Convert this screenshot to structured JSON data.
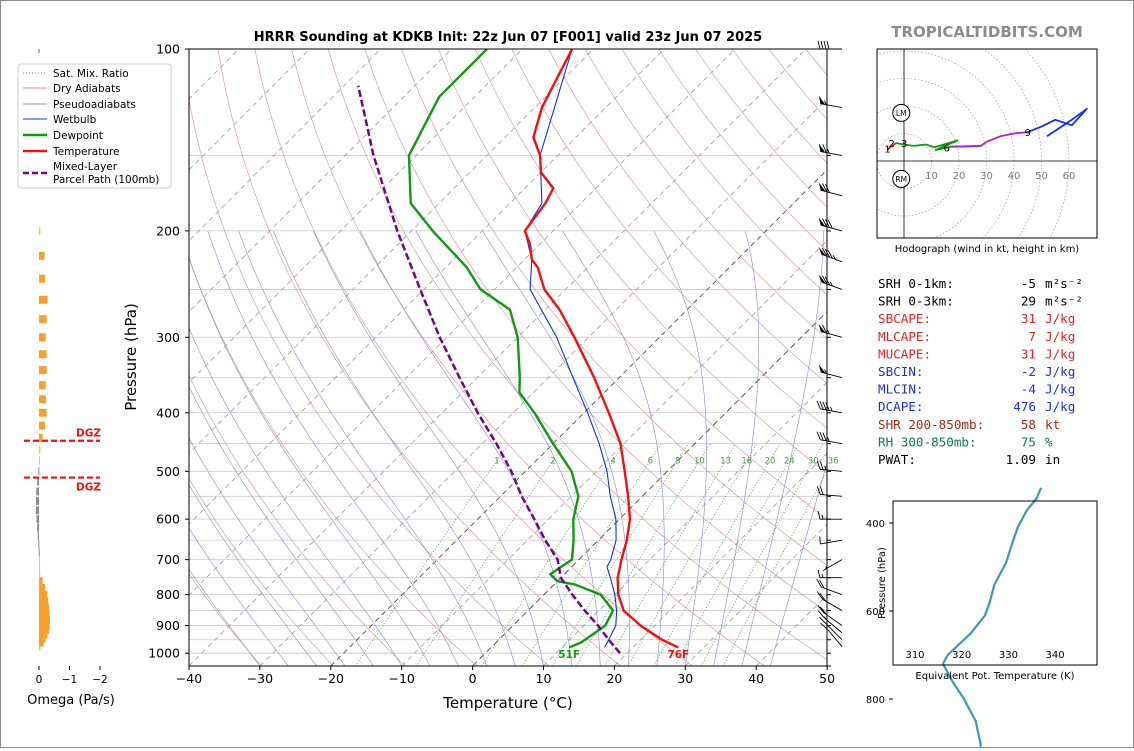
{
  "header": {
    "title": "HRRR Sounding at KDKB Init: 22z Jun 07 [F001] valid 23z Jun 07 2025",
    "brand": "TROPICALTIDBITS.COM"
  },
  "colors": {
    "temperature": "#ee1111",
    "dewpoint": "#119911",
    "wetbulb": "#1133dd",
    "parcel": "#770088",
    "dry_adiabat": "#d98c8c",
    "moist_adiabat": "#8888dd",
    "mixing_ratio": "#449944",
    "isotherm": "#888888",
    "omega": "#f7a12c",
    "dgz": "#ee1111",
    "thetae": "#3a9ab4",
    "hodo_0_1": "#ee1111",
    "hodo_1_3": "#119911",
    "hodo_3_9": "#aa22cc",
    "hodo_9_up": "#1133dd",
    "stat_red": "#d62728",
    "stat_blue": "#2232c8",
    "stat_brown": "#9a2c1c",
    "stat_green": "#117744"
  },
  "chart_data": [
    {
      "type": "line",
      "name": "skewt",
      "xlabel": "Temperature (°C)",
      "ylabel": "Pressure (hPa)",
      "xlim": [
        -40,
        50
      ],
      "ylim": [
        1050,
        100
      ],
      "yscale": "log",
      "skew": "45deg",
      "x_ticks": [
        "−40",
        "−30",
        "−20",
        "−10",
        "0",
        "10",
        "20",
        "30",
        "40",
        "50"
      ],
      "y_ticks": [
        1000,
        900,
        800,
        700,
        600,
        500,
        400,
        300,
        200,
        100
      ],
      "grid": true,
      "legend_position": "left",
      "legend": [
        "Sat. Mix. Ratio",
        "Dry Adiabats",
        "Pseudoadiabats",
        "Wetbulb",
        "Dewpoint",
        "Temperature",
        "Mixed-Layer\nParcel Path (100mb)"
      ],
      "mixing_ratio_labels": [
        "1",
        "2",
        "4",
        "6",
        "8",
        "10",
        "13",
        "16",
        "20",
        "24",
        "30",
        "36"
      ],
      "surface_labels": {
        "dewpoint": "51F",
        "temperature": "76F"
      },
      "series": [
        {
          "name": "Temperature",
          "points": [
            [
              978,
              26.4
            ],
            [
              950,
              23
            ],
            [
              900,
              18
            ],
            [
              850,
              13.5
            ],
            [
              800,
              10.5
            ],
            [
              750,
              8
            ],
            [
              700,
              6
            ],
            [
              650,
              4
            ],
            [
              600,
              1.5
            ],
            [
              550,
              -2
            ],
            [
              500,
              -6
            ],
            [
              450,
              -10.5
            ],
            [
              400,
              -16.5
            ],
            [
              350,
              -23.5
            ],
            [
              300,
              -32
            ],
            [
              270,
              -38
            ],
            [
              250,
              -43
            ],
            [
              230,
              -47
            ],
            [
              223,
              -49
            ],
            [
              210,
              -51.5
            ],
            [
              200,
              -54
            ],
            [
              180,
              -55
            ],
            [
              170,
              -56
            ],
            [
              160,
              -60
            ],
            [
              150,
              -62.5
            ],
            [
              140,
              -66
            ],
            [
              125,
              -69
            ],
            [
              100,
              -73
            ]
          ]
        },
        {
          "name": "Dewpoint",
          "points": [
            [
              978,
              11
            ],
            [
              960,
              12
            ],
            [
              900,
              13
            ],
            [
              850,
              12
            ],
            [
              800,
              8
            ],
            [
              770,
              3
            ],
            [
              760,
              0
            ],
            [
              740,
              -2
            ],
            [
              700,
              -1
            ],
            [
              650,
              -3.5
            ],
            [
              600,
              -6.5
            ],
            [
              550,
              -9
            ],
            [
              500,
              -13.5
            ],
            [
              450,
              -20
            ],
            [
              400,
              -27
            ],
            [
              370,
              -32
            ],
            [
              350,
              -34
            ],
            [
              300,
              -40
            ],
            [
              270,
              -45
            ],
            [
              250,
              -52
            ],
            [
              230,
              -57
            ],
            [
              200,
              -67
            ],
            [
              180,
              -74
            ],
            [
              150,
              -81
            ],
            [
              120,
              -85
            ],
            [
              100,
              -85
            ]
          ]
        },
        {
          "name": "Wetbulb",
          "points": [
            [
              978,
              16
            ],
            [
              950,
              15.5
            ],
            [
              900,
              14.5
            ],
            [
              850,
              12.5
            ],
            [
              800,
              10
            ],
            [
              750,
              7
            ],
            [
              720,
              5
            ],
            [
              700,
              4.5
            ],
            [
              650,
              2.5
            ],
            [
              600,
              -0.5
            ],
            [
              550,
              -4.5
            ],
            [
              500,
              -8.5
            ],
            [
              450,
              -13.5
            ],
            [
              400,
              -19.5
            ],
            [
              350,
              -26.5
            ],
            [
              300,
              -34.5
            ],
            [
              250,
              -45
            ],
            [
              223,
              -49
            ],
            [
              200,
              -54
            ],
            [
              180,
              -55.5
            ],
            [
              150,
              -62.5
            ],
            [
              100,
              -73
            ]
          ]
        },
        {
          "name": "Mixed-Layer\nParcel Path (100mb)",
          "points": [
            [
              1000,
              19
            ],
            [
              950,
              15.5
            ],
            [
              900,
              12
            ],
            [
              850,
              8
            ],
            [
              800,
              4
            ],
            [
              750,
              0
            ],
            [
              700,
              -3
            ],
            [
              650,
              -7.5
            ],
            [
              600,
              -12
            ],
            [
              550,
              -17
            ],
            [
              500,
              -22
            ],
            [
              450,
              -28
            ],
            [
              400,
              -35
            ],
            [
              350,
              -42.5
            ],
            [
              300,
              -51
            ],
            [
              250,
              -60.5
            ],
            [
              200,
              -72
            ],
            [
              150,
              -86
            ],
            [
              115,
              -98
            ]
          ]
        }
      ]
    },
    {
      "type": "bar",
      "name": "omega",
      "xlabel": "Omega (Pa/s)",
      "xlim": [
        0.2,
        -2.2
      ],
      "x_ticks": [
        "0",
        "−1",
        "−2"
      ],
      "dgz_label": "DGZ",
      "dgz_levels": [
        445,
        512
      ],
      "series": [
        {
          "pressure": [
            975,
            960,
            945,
            930,
            915,
            900,
            880,
            860,
            840,
            820,
            800,
            780,
            760,
            740,
            720,
            700,
            680,
            660,
            640,
            620,
            600,
            580,
            560,
            540,
            520,
            500,
            480,
            460,
            440,
            420,
            400,
            380,
            360,
            340,
            320,
            300,
            280,
            260,
            240,
            220,
            200
          ],
          "omega": [
            -0.05,
            -0.15,
            -0.22,
            -0.28,
            -0.33,
            -0.35,
            -0.36,
            -0.35,
            -0.33,
            -0.3,
            -0.27,
            -0.2,
            -0.12,
            -0.04,
            -0.02,
            -0.01,
            0.01,
            0.02,
            0.04,
            0.06,
            0.08,
            0.1,
            0.1,
            0.09,
            0.06,
            0.02,
            -0.02,
            -0.05,
            -0.12,
            -0.2,
            -0.25,
            -0.23,
            -0.22,
            -0.25,
            -0.25,
            -0.22,
            -0.25,
            -0.28,
            -0.2,
            -0.18,
            -0.05
          ]
        }
      ]
    },
    {
      "type": "line",
      "name": "hodograph",
      "caption": "Hodograph (wind in kt, height in km)",
      "ring_labels": [
        "10",
        "20",
        "30",
        "40",
        "50",
        "60"
      ],
      "marker_labels": [
        "LM",
        "RM"
      ],
      "marker_points": [
        [
          -1,
          17.5
        ],
        [
          -1,
          -6.5
        ]
      ],
      "height_labels": [
        {
          "label": "1",
          "u": -6,
          "v": 4.5
        },
        {
          "label": "2",
          "u": -4.5,
          "v": 6.5
        },
        {
          "label": "3",
          "u": 0,
          "v": 6.5
        },
        {
          "label": "6",
          "u": 15.5,
          "v": 5
        },
        {
          "label": "9",
          "u": 45,
          "v": 10.5
        }
      ],
      "segments": [
        {
          "range": "0-1km",
          "points": [
            [
              -6,
              4
            ],
            [
              -5,
              5
            ],
            [
              -3,
              6.5
            ]
          ]
        },
        {
          "range": "1-3km",
          "points": [
            [
              -3,
              6.5
            ],
            [
              0,
              6
            ],
            [
              3.5,
              5.5
            ],
            [
              8,
              6
            ],
            [
              11,
              5
            ],
            [
              14.5,
              6
            ],
            [
              19.5,
              7.5
            ],
            [
              11.5,
              4
            ],
            [
              17,
              5.2
            ],
            [
              28,
              5.5
            ]
          ]
        },
        {
          "range": "3-9km",
          "points": [
            [
              17,
              5.2
            ],
            [
              24,
              5.3
            ],
            [
              28,
              5.5
            ],
            [
              30,
              7
            ],
            [
              35,
              9
            ],
            [
              40,
              10
            ],
            [
              45,
              10.5
            ]
          ]
        },
        {
          "range": "9+km",
          "points": [
            [
              45,
              10.5
            ],
            [
              50,
              12.5
            ],
            [
              55,
              15
            ],
            [
              58,
              14
            ],
            [
              61,
              13
            ],
            [
              66.5,
              19
            ],
            [
              61,
              15
            ],
            [
              52,
              9
            ]
          ]
        }
      ]
    },
    {
      "type": "line",
      "name": "thetae",
      "xlabel": "Equivalent Pot. Temperature (K)",
      "ylabel": "Pressure (hPa)",
      "x_ticks": [
        310,
        320,
        330,
        340
      ],
      "y_ticks": [
        400,
        600,
        800
      ],
      "series": [
        {
          "name": "Equivalent Pot. Temperature",
          "points": [
            [
              325,
              978
            ],
            [
              324.5,
              960
            ],
            [
              324,
              900
            ],
            [
              323,
              850
            ],
            [
              320.5,
              800
            ],
            [
              318,
              760
            ],
            [
              316,
              720
            ],
            [
              317,
              700
            ],
            [
              320,
              670
            ],
            [
              322,
              650
            ],
            [
              325,
              610
            ],
            [
              326,
              580
            ],
            [
              327,
              540
            ],
            [
              329.5,
              490
            ],
            [
              331,
              440
            ],
            [
              332,
              410
            ],
            [
              334,
              370
            ],
            [
              336,
              345
            ],
            [
              337,
              320
            ]
          ]
        }
      ]
    }
  ],
  "stats": [
    {
      "label": "SRH 0-1km:",
      "value": "-5",
      "unit": "m²s⁻²",
      "color": "#000000"
    },
    {
      "label": "SRH 0-3km:",
      "value": "29",
      "unit": "m²s⁻²",
      "color": "#000000"
    },
    {
      "label": "SBCAPE:",
      "value": "31",
      "unit": "J/kg",
      "color": "#d62728"
    },
    {
      "label": "MLCAPE:",
      "value": "7",
      "unit": "J/kg",
      "color": "#d62728"
    },
    {
      "label": "MUCAPE:",
      "value": "31",
      "unit": "J/kg",
      "color": "#d62728"
    },
    {
      "label": "SBCIN:",
      "value": "-2",
      "unit": "J/kg",
      "color": "#2232c8"
    },
    {
      "label": "MLCIN:",
      "value": "-4",
      "unit": "J/kg",
      "color": "#2232c8"
    },
    {
      "label": "DCAPE:",
      "value": "476",
      "unit": "J/kg",
      "color": "#2232c8"
    },
    {
      "label": "SHR 200-850mb:",
      "value": "58",
      "unit": "kt",
      "color": "#9a2c1c"
    },
    {
      "label": "RH 300-850mb:",
      "value": "75",
      "unit": "%",
      "color": "#117744"
    },
    {
      "label": "PWAT:",
      "value": "1.09",
      "unit": "in",
      "color": "#000000"
    }
  ],
  "wind_profile": {
    "levels": [
      975,
      950,
      925,
      900,
      850,
      800,
      750,
      700,
      650,
      600,
      550,
      500,
      450,
      400,
      350,
      300,
      250,
      225,
      200,
      175,
      150,
      125,
      100
    ],
    "speed_kt": [
      10,
      12,
      15,
      18,
      20,
      20,
      15,
      5,
      10,
      15,
      20,
      25,
      35,
      45,
      55,
      65,
      75,
      85,
      80,
      70,
      65,
      55,
      40
    ],
    "direction_deg": [
      220,
      225,
      230,
      235,
      240,
      250,
      270,
      300,
      280,
      270,
      265,
      265,
      260,
      260,
      255,
      255,
      250,
      250,
      255,
      255,
      260,
      260,
      270
    ]
  }
}
